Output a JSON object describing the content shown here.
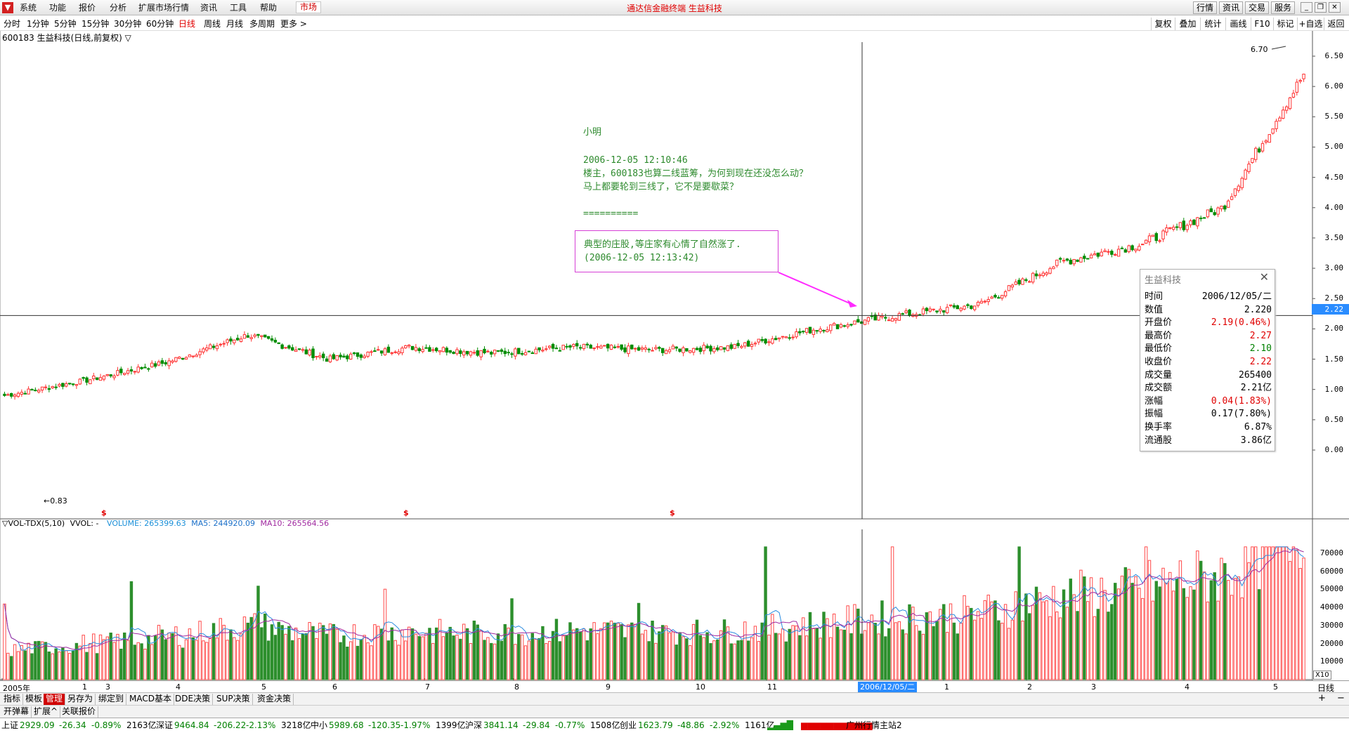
{
  "app": {
    "logo_icon": "app-logo-icon",
    "title": "通达信金融终端 生益科技"
  },
  "menu": {
    "items": [
      "系统",
      "功能",
      "报价",
      "分析",
      "扩展市场行情",
      "资讯",
      "工具",
      "帮助"
    ],
    "market": "市场"
  },
  "top_right": {
    "buttons": [
      "行情",
      "资讯",
      "交易",
      "服务"
    ],
    "window": [
      "minimize-icon",
      "restore-icon",
      "close-icon"
    ]
  },
  "periods": {
    "items": [
      "分时",
      "1分钟",
      "5分钟",
      "15分钟",
      "30分钟",
      "60分钟",
      "日线",
      "周线",
      "月线",
      "多周期",
      "更多 >"
    ],
    "active": "日线"
  },
  "tools": {
    "items": [
      "复权",
      "叠加",
      "统计",
      "画线",
      "F10",
      "标记",
      "+自选",
      "返回"
    ]
  },
  "stock": {
    "label": "600183 生益科技(日线,前复权) ▽"
  },
  "price_axis": {
    "labels": [
      "6.50",
      "6.00",
      "5.50",
      "5.00",
      "4.50",
      "4.00",
      "3.50",
      "3.00",
      "2.50",
      "2.00",
      "1.50",
      "1.00",
      "0.50",
      "0.00"
    ],
    "cursor_value": "2.22",
    "high_mark": "6.70",
    "low_mark": "←0.83"
  },
  "markers": {
    "dividend": "$"
  },
  "comment": {
    "author": "小明",
    "time": "2006-12-05 12:10:46",
    "line1": "楼主，600183也算二线蓝筹，为何到现在还没怎么动？",
    "line2": "马上都要轮到三线了，它不是要歇菜？",
    "separator": "==========",
    "reply_line1": "典型的庄股,等庄家有心情了自然涨了.",
    "reply_line2": "(2006-12-05 12:13:42)"
  },
  "info_panel": {
    "title": "生益科技",
    "rows": [
      {
        "k": "时间",
        "v": "2006/12/05/二",
        "c": "black"
      },
      {
        "k": "数值",
        "v": "2.220",
        "c": "black"
      },
      {
        "k": "开盘价",
        "v": "2.19(0.46%)",
        "c": "red"
      },
      {
        "k": "最高价",
        "v": "2.27",
        "c": "red"
      },
      {
        "k": "最低价",
        "v": "2.10",
        "c": "green"
      },
      {
        "k": "收盘价",
        "v": "2.22",
        "c": "red"
      },
      {
        "k": "成交量",
        "v": "265400",
        "c": "black"
      },
      {
        "k": "成交额",
        "v": "2.21亿",
        "c": "black"
      },
      {
        "k": "涨幅",
        "v": "0.04(1.83%)",
        "c": "red"
      },
      {
        "k": "振幅",
        "v": "0.17(7.80%)",
        "c": "black"
      },
      {
        "k": "换手率",
        "v": "6.87%",
        "c": "black"
      },
      {
        "k": "流通股",
        "v": "3.86亿",
        "c": "black"
      }
    ]
  },
  "volume": {
    "name": "▽VOL-TDX(5,10)",
    "vol_label": "VVOL: -",
    "volume": "VOLUME: 265399.63",
    "ma5": "MA5: 244920.09",
    "ma10": "MA10: 265564.56",
    "axis": [
      "70000",
      "60000",
      "50000",
      "40000",
      "30000",
      "20000",
      "10000"
    ],
    "unit": "X10"
  },
  "x_axis": {
    "labels": [
      "2005年",
      "1",
      "3",
      "4",
      "5",
      "6",
      "7",
      "8",
      "9",
      "10",
      "11",
      "1",
      "2",
      "3",
      "4",
      "5"
    ],
    "cursor": "2006/12/05/二",
    "period": "日线"
  },
  "bottom_tabs": {
    "items": [
      "指标",
      "模板",
      "管理",
      "另存为",
      "绑定到",
      "MACD基本",
      "DDE决策",
      "SUP决策",
      "资金决策"
    ],
    "active": "管理"
  },
  "bottom_tabs2": {
    "items": [
      "开弹幕",
      "扩展^",
      "关联报价"
    ]
  },
  "status": {
    "indices": [
      {
        "name": "上证",
        "value": "2929.09",
        "chg": "-26.34",
        "pct": "-0.89%",
        "amt": "2163亿"
      },
      {
        "name": "深证",
        "value": "9464.84",
        "chg": "-206.22",
        "pct": "-2.13%",
        "amt": "3218亿"
      },
      {
        "name": "中小",
        "value": "5989.68",
        "chg": "-120.35",
        "pct": "-1.97%",
        "amt": "1399亿"
      },
      {
        "name": "沪深",
        "value": "3841.14",
        "chg": "-29.84",
        "pct": "-0.77%",
        "amt": "1508亿"
      },
      {
        "name": "创业",
        "value": "1623.79",
        "chg": "-48.86",
        "pct": "-2.92%",
        "amt": "1161亿"
      }
    ],
    "server": "广州行情主站2"
  },
  "chart_data": {
    "type": "candlestick",
    "title": "600183 生益科技(日线,前复权)",
    "ylim": [
      0.0,
      6.7
    ],
    "x_range": [
      "2005年",
      "2007-05"
    ],
    "months": [
      "2005年",
      "1",
      "3",
      "4",
      "5",
      "6",
      "7",
      "8",
      "9",
      "10",
      "11",
      "12",
      "2007-1",
      "2",
      "3",
      "4",
      "5"
    ],
    "close_path": [
      {
        "m": "2005-01",
        "v": 0.9
      },
      {
        "m": "2005-03",
        "v": 1.15
      },
      {
        "m": "2005-04",
        "v": 1.45
      },
      {
        "m": "2005-05",
        "v": 1.9
      },
      {
        "m": "2005-06",
        "v": 1.5
      },
      {
        "m": "2005-07",
        "v": 1.7
      },
      {
        "m": "2005-08",
        "v": 1.6
      },
      {
        "m": "2005-09",
        "v": 1.7
      },
      {
        "m": "2005-10",
        "v": 1.65
      },
      {
        "m": "2005-11",
        "v": 1.7
      },
      {
        "m": "2005-12",
        "v": 2.0
      },
      {
        "m": "2006-12",
        "v": 2.22
      },
      {
        "m": "2007-01",
        "v": 2.4
      },
      {
        "m": "2007-02",
        "v": 3.1
      },
      {
        "m": "2007-03",
        "v": 3.4
      },
      {
        "m": "2007-04",
        "v": 4.0
      },
      {
        "m": "2007-05",
        "v": 6.2
      }
    ],
    "cursor": {
      "date": "2006/12/05",
      "price": 2.22
    },
    "volume_series": {
      "names": [
        "VOLUME",
        "MA5",
        "MA10"
      ],
      "ylim": [
        0,
        75000
      ],
      "peak": 74000
    }
  }
}
